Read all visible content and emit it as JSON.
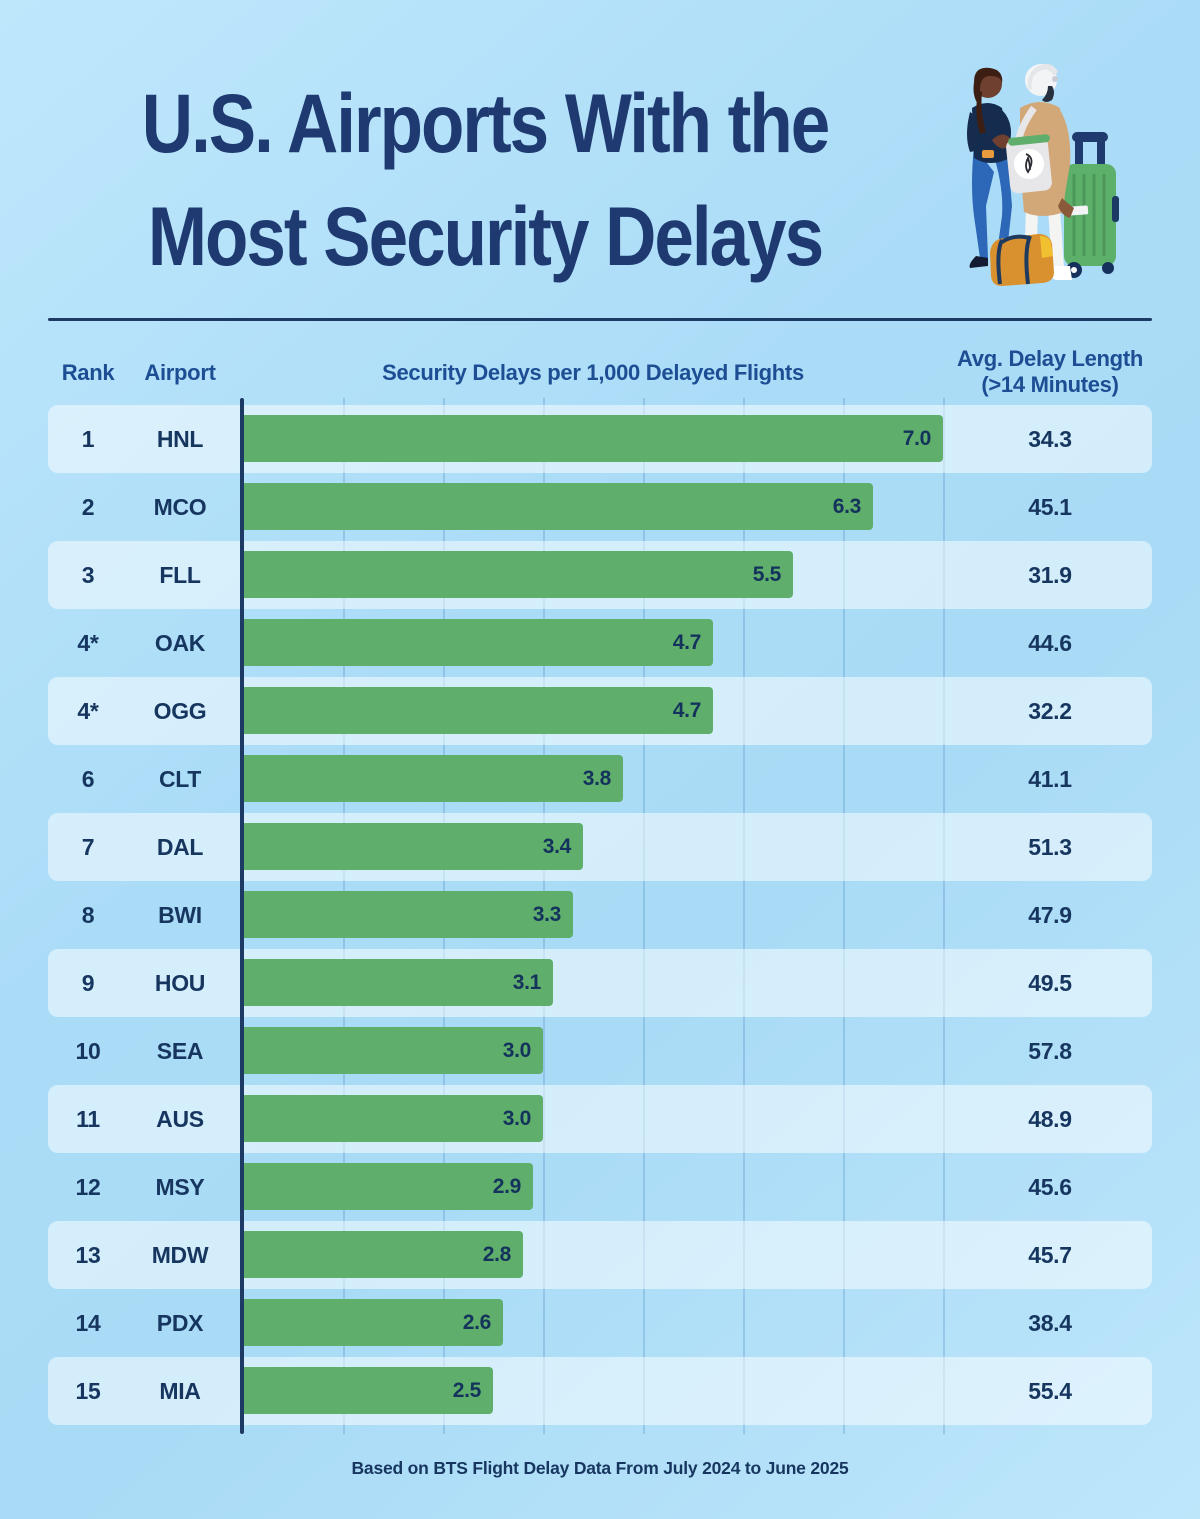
{
  "title": {
    "line1": "U.S. Airports With the",
    "line2": "Most Security Delays"
  },
  "headers": {
    "rank": "Rank",
    "airport": "Airport",
    "chart": "Security Delays per 1,000 Delayed Flights",
    "avg_line1": "Avg. Delay Length",
    "avg_line2": "(>14 Minutes)"
  },
  "table": {
    "rows": [
      {
        "rank": "1",
        "airport": "HNL",
        "delays_label": "7.0",
        "delays_value": 7.0,
        "avg_label": "34.3"
      },
      {
        "rank": "2",
        "airport": "MCO",
        "delays_label": "6.3",
        "delays_value": 6.3,
        "avg_label": "45.1"
      },
      {
        "rank": "3",
        "airport": "FLL",
        "delays_label": "5.5",
        "delays_value": 5.5,
        "avg_label": "31.9"
      },
      {
        "rank": "4*",
        "airport": "OAK",
        "delays_label": "4.7",
        "delays_value": 4.7,
        "avg_label": "44.6"
      },
      {
        "rank": "4*",
        "airport": "OGG",
        "delays_label": "4.7",
        "delays_value": 4.7,
        "avg_label": "32.2"
      },
      {
        "rank": "6",
        "airport": "CLT",
        "delays_label": "3.8",
        "delays_value": 3.8,
        "avg_label": "41.1"
      },
      {
        "rank": "7",
        "airport": "DAL",
        "delays_label": "3.4",
        "delays_value": 3.4,
        "avg_label": "51.3"
      },
      {
        "rank": "8",
        "airport": "BWI",
        "delays_label": "3.3",
        "delays_value": 3.3,
        "avg_label": "47.9"
      },
      {
        "rank": "9",
        "airport": "HOU",
        "delays_label": "3.1",
        "delays_value": 3.1,
        "avg_label": "49.5"
      },
      {
        "rank": "10",
        "airport": "SEA",
        "delays_label": "3.0",
        "delays_value": 3.0,
        "avg_label": "57.8"
      },
      {
        "rank": "11",
        "airport": "AUS",
        "delays_label": "3.0",
        "delays_value": 3.0,
        "avg_label": "48.9"
      },
      {
        "rank": "12",
        "airport": "MSY",
        "delays_label": "2.9",
        "delays_value": 2.9,
        "avg_label": "45.6"
      },
      {
        "rank": "13",
        "airport": "MDW",
        "delays_label": "2.8",
        "delays_value": 2.8,
        "avg_label": "45.7"
      },
      {
        "rank": "14",
        "airport": "PDX",
        "delays_label": "2.6",
        "delays_value": 2.6,
        "avg_label": "38.4"
      },
      {
        "rank": "15",
        "airport": "MIA",
        "delays_label": "2.5",
        "delays_value": 2.5,
        "avg_label": "55.4"
      }
    ]
  },
  "chart_data": {
    "type": "bar",
    "orientation": "horizontal",
    "title": "Security Delays per 1,000 Delayed Flights",
    "categories": [
      "HNL",
      "MCO",
      "FLL",
      "OAK",
      "OGG",
      "CLT",
      "DAL",
      "BWI",
      "HOU",
      "SEA",
      "AUS",
      "MSY",
      "MDW",
      "PDX",
      "MIA"
    ],
    "ranks": [
      "1",
      "2",
      "3",
      "4*",
      "4*",
      "6",
      "7",
      "8",
      "9",
      "10",
      "11",
      "12",
      "13",
      "14",
      "15"
    ],
    "series": [
      {
        "name": "Security Delays per 1,000 Delayed Flights",
        "values": [
          7.0,
          6.3,
          5.5,
          4.7,
          4.7,
          3.8,
          3.4,
          3.3,
          3.1,
          3.0,
          3.0,
          2.9,
          2.8,
          2.6,
          2.5
        ]
      },
      {
        "name": "Avg. Delay Length (>14 Minutes)",
        "values": [
          34.3,
          45.1,
          31.9,
          44.6,
          32.2,
          41.1,
          51.3,
          47.9,
          49.5,
          57.8,
          48.9,
          45.6,
          45.7,
          38.4,
          55.4
        ]
      }
    ],
    "xlim": [
      0,
      7
    ],
    "gridline_step": 1,
    "grid": "vertical",
    "legend": "none"
  },
  "footer": {
    "source_note": "Based on BTS Flight Delay Data From July 2024 to June 2025"
  },
  "colors": {
    "bar_green": "#5fae6b",
    "title_navy": "#1e3a70",
    "header_blue": "#1d4e94",
    "data_navy": "#16365f",
    "axis_navy": "#1c3a64",
    "row_band": "#d5effd",
    "background_top": "#bee7fc",
    "background_mid": "#a9dbf6"
  },
  "illustration": {
    "name": "two-travelers-with-luggage"
  }
}
